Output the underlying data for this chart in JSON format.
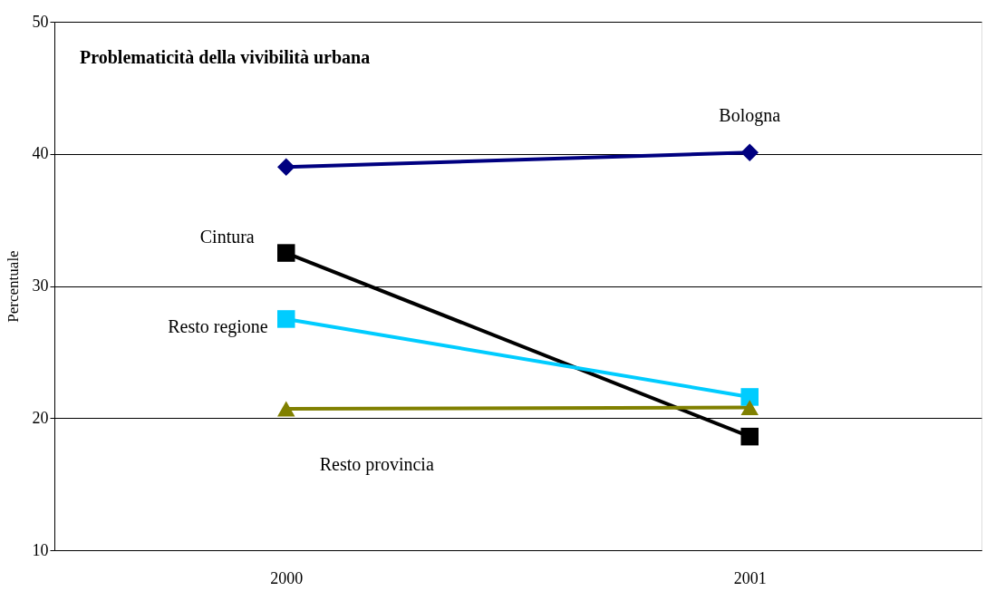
{
  "chart_data": {
    "type": "line",
    "title": "Problematicità della vivibilità urbana",
    "ylabel": "Percentuale",
    "categories": [
      "2000",
      "2001"
    ],
    "ylim": [
      10,
      50
    ],
    "yticks": [
      10,
      20,
      30,
      40,
      50
    ],
    "grid": "y",
    "series": [
      {
        "name": "Bologna",
        "color": "#000080",
        "values": [
          39.0,
          40.1
        ],
        "marker": "diamond"
      },
      {
        "name": "Cintura",
        "color": "#000000",
        "values": [
          32.5,
          18.6
        ],
        "marker": "square"
      },
      {
        "name": "Resto regione",
        "color": "#00ccff",
        "values": [
          27.5,
          21.6
        ],
        "marker": "square"
      },
      {
        "name": "Resto provincia",
        "color": "#808000",
        "values": [
          20.7,
          20.8
        ],
        "marker": "triangle"
      }
    ]
  }
}
